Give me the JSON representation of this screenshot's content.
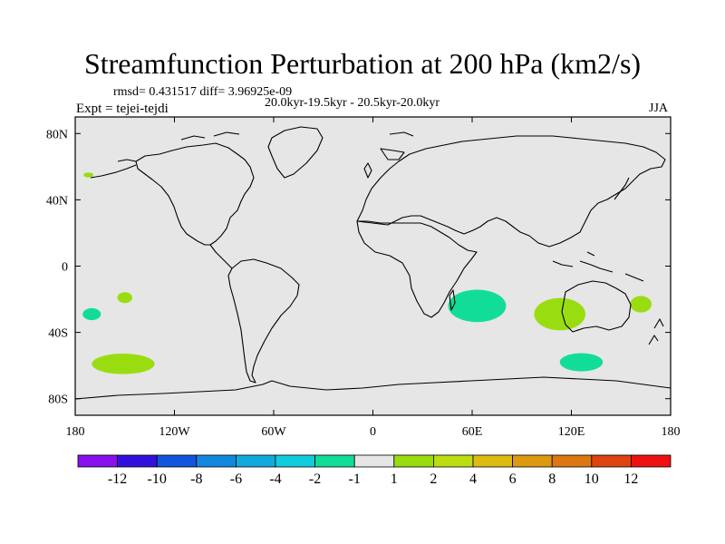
{
  "title": "Streamfunction Perturbation at 200 hPa (km2/s)",
  "stats": "rmsd= 0.431517 diff= 3.96925e-09",
  "period": "20.0kyr-19.5kyr - 20.5kyr-20.0kyr",
  "experiment": "Expt = tejei-tejdi",
  "season": "JJA",
  "map": {
    "projection": "cylindrical-equidistant",
    "lon_range": [
      -180,
      180
    ],
    "lat_range": [
      -90,
      90
    ],
    "background_color": "#e6e6e6",
    "lon_ticks": [
      {
        "value": -180,
        "label": "180"
      },
      {
        "value": -120,
        "label": "120W"
      },
      {
        "value": -60,
        "label": "60W"
      },
      {
        "value": 0,
        "label": "0"
      },
      {
        "value": 60,
        "label": "60E"
      },
      {
        "value": 120,
        "label": "120E"
      },
      {
        "value": 180,
        "label": "180"
      }
    ],
    "lat_ticks": [
      {
        "value": 80,
        "label": "80N"
      },
      {
        "value": 40,
        "label": "40N"
      },
      {
        "value": 0,
        "label": "0"
      },
      {
        "value": -40,
        "label": "40S"
      },
      {
        "value": -80,
        "label": "80S"
      }
    ],
    "anomalies": [
      {
        "lon": -172,
        "lat": 55,
        "rx": 3,
        "ry": 1.5,
        "color": "#99dd11"
      },
      {
        "lon": -150,
        "lat": -19,
        "rx": 4.5,
        "ry": 3.3,
        "color": "#99dd11"
      },
      {
        "lon": -170,
        "lat": -29,
        "rx": 5.5,
        "ry": 3.6,
        "color": "#11dd99"
      },
      {
        "lon": -151,
        "lat": -59,
        "rx": 19,
        "ry": 6.2,
        "color": "#99dd11"
      },
      {
        "lon": 63,
        "lat": -24,
        "rx": 17.5,
        "ry": 9.8,
        "color": "#11dd99"
      },
      {
        "lon": 113,
        "lat": -29,
        "rx": 15.5,
        "ry": 9.8,
        "color": "#99dd11"
      },
      {
        "lon": 162,
        "lat": -23,
        "rx": 6.5,
        "ry": 5,
        "color": "#99dd11"
      },
      {
        "lon": 126,
        "lat": -58,
        "rx": 13,
        "ry": 5.5,
        "color": "#11dd99"
      }
    ]
  },
  "colorbar": {
    "colors": [
      "#8811ee",
      "#3311dd",
      "#1155dd",
      "#1188dd",
      "#11aadd",
      "#11ccdd",
      "#11dd99",
      "#e6e6e6",
      "#99dd11",
      "#bbdd11",
      "#ddbb11",
      "#dd9911",
      "#dd7711",
      "#dd4411",
      "#ee1111"
    ],
    "labels": [
      "-12",
      "-10",
      "-8",
      "-6",
      "-4",
      "-2",
      "-1",
      "1",
      "2",
      "4",
      "6",
      "8",
      "10",
      "12"
    ]
  }
}
